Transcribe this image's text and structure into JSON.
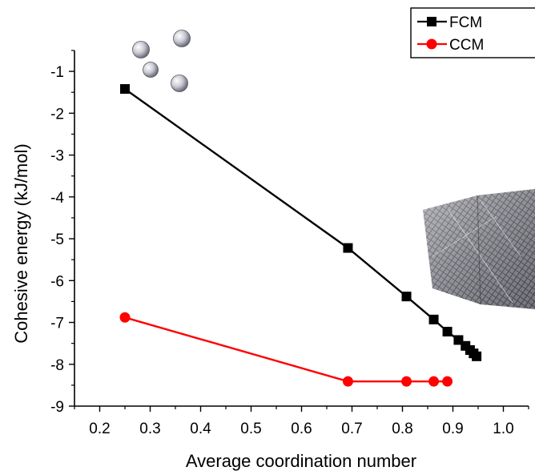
{
  "chart_data": {
    "type": "line",
    "title": "",
    "xlabel": "Average coordination number",
    "ylabel": "Cohesive energy (kJ/mol)",
    "xlim": [
      0.15,
      1.05
    ],
    "ylim": [
      -9,
      -0.5
    ],
    "x_ticks": [
      0.2,
      0.3,
      0.4,
      0.5,
      0.6,
      0.7,
      0.8,
      0.9,
      1.0
    ],
    "x_tick_labels": [
      "0.2",
      "0.3",
      "0.4",
      "0.5",
      "0.6",
      "0.7",
      "0.8",
      "0.9",
      "1.0"
    ],
    "y_ticks": [
      -9,
      -8,
      -7,
      -6,
      -5,
      -4,
      -3,
      -2,
      -1
    ],
    "y_tick_labels": [
      "-9",
      "-8",
      "-7",
      "-6",
      "-5",
      "-4",
      "-3",
      "-2",
      "-1"
    ],
    "grid": false,
    "legend_position": "top-right",
    "series": [
      {
        "name": "FCM",
        "color": "#000000",
        "marker": "square",
        "x": [
          0.25,
          0.692,
          0.808,
          0.862,
          0.889,
          0.911,
          0.925,
          0.934,
          0.941,
          0.947
        ],
        "y": [
          -1.42,
          -5.22,
          -6.38,
          -6.93,
          -7.22,
          -7.42,
          -7.56,
          -7.66,
          -7.74,
          -7.81
        ]
      },
      {
        "name": "CCM",
        "color": "#ff0000",
        "marker": "circle",
        "x": [
          0.25,
          0.692,
          0.808,
          0.862,
          0.889
        ],
        "y": [
          -6.88,
          -8.41,
          -8.41,
          -8.41,
          -8.41
        ]
      }
    ],
    "annotations": {
      "small_cluster_icon": "atom-cluster-icon",
      "large_lattice_icon": "crystal-lattice-icon"
    }
  }
}
